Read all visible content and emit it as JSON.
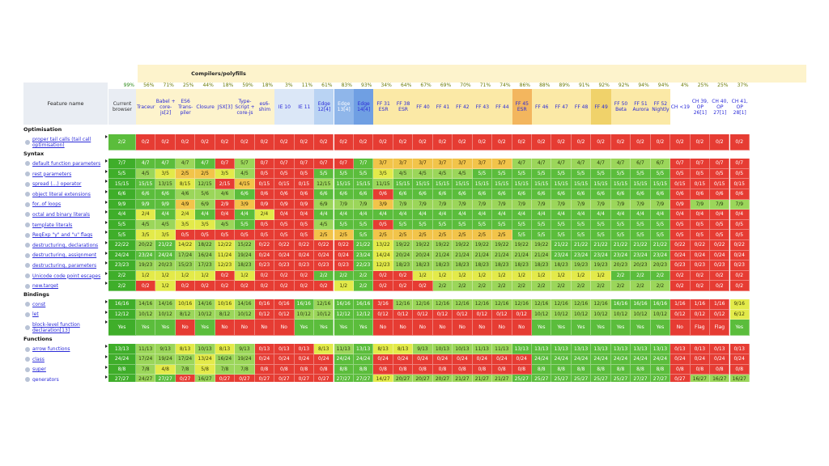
{
  "header": {
    "group_label": "Compilers/polyfills",
    "feature_name": "Feature name",
    "current_browser": [
      "Current",
      "browser"
    ]
  },
  "columns": [
    {
      "label": "Current browser",
      "pct": "99%"
    },
    {
      "label": "Traceur",
      "pct": "56%"
    },
    {
      "label": "Babel + core-js[2]",
      "pct": "71%"
    },
    {
      "label": "ES6 Trans-piler",
      "pct": "25%"
    },
    {
      "label": "Closure",
      "pct": "44%"
    },
    {
      "label": "JSX[3]",
      "pct": "18%"
    },
    {
      "label": "Type-Script + core-js",
      "pct": "59%"
    },
    {
      "label": "es6-shim",
      "pct": "18%"
    },
    {
      "label": "IE 10",
      "pct": "3%"
    },
    {
      "label": "IE 11",
      "pct": "11%"
    },
    {
      "label": "Edge 12[4]",
      "pct": "61%"
    },
    {
      "label": "Edge 13[4]",
      "pct": "83%"
    },
    {
      "label": "Edge 14[4]",
      "pct": "93%"
    },
    {
      "label": "FF 31 ESR",
      "pct": "34%"
    },
    {
      "label": "FF 38 ESR",
      "pct": "64%"
    },
    {
      "label": "FF 40",
      "pct": "67%"
    },
    {
      "label": "FF 41",
      "pct": "69%"
    },
    {
      "label": "FF 42",
      "pct": "70%"
    },
    {
      "label": "FF 43",
      "pct": "71%"
    },
    {
      "label": "FF 44",
      "pct": "74%"
    },
    {
      "label": "FF 45 ESR",
      "pct": "86%"
    },
    {
      "label": "FF 46",
      "pct": "88%"
    },
    {
      "label": "FF 47",
      "pct": "89%"
    },
    {
      "label": "FF 48",
      "pct": "91%"
    },
    {
      "label": "FF 49",
      "pct": "92%"
    },
    {
      "label": "FF 50 Beta",
      "pct": "92%"
    },
    {
      "label": "FF 51 Aurora",
      "pct": "94%"
    },
    {
      "label": "FF 52 Nightly",
      "pct": "94%"
    },
    {
      "label": "CH <19",
      "pct": "4%"
    },
    {
      "label": "CH 39, OP 26[1]",
      "pct": "25%"
    },
    {
      "label": "CH 40, OP 27[1]",
      "pct": "25%"
    },
    {
      "label": "CH 41, OP 28[1]",
      "pct": "37%"
    }
  ],
  "rows": [
    {
      "type": "section",
      "label": "Optimisation"
    },
    {
      "type": "feature",
      "label": "proper tail calls (tail call optimisation)",
      "cells": "2/2|0/2|0/2|0/2|0/2|0/2|0/2|0/2|0/2|0/2|0/2|0/2|0/2|0/2|0/2|0/2|0/2|0/2|0/2|0/2|0/2|0/2|0/2|0/2|0/2|0/2|0/2|0/2|0/2|0/2|0/2|0/2",
      "colors": "g|r|r|r|r|r|r|r|r|r|r|r|r|r|r|r|r|r|r|r|r|r|r|r|r|r|r|r|r|r|r|r"
    },
    {
      "type": "section",
      "label": "Syntax"
    },
    {
      "type": "feature",
      "label": "default function parameters",
      "cells": "7/7|4/7|4/7|4/7|4/7|0/7|5/7|0/7|0/7|0/7|0/7|0/7|7/7|3/7|3/7|3/7|3/7|3/7|3/7|3/7|4/7|4/7|4/7|4/7|4/7|4/7|6/7|6/7|0/7|0/7|0/7|0/7",
      "colors": "dg|g|g|lg|g|r|lg|r|r|r|r|r|g|o|o|o|o|o|o|o|lg|lg|lg|lg|lg|lg|lg|lg|r|r|r|r"
    },
    {
      "type": "feature",
      "label": "rest parameters",
      "cells": "5/5|4/5|3/5|2/5|2/5|3/5|4/5|0/5|0/5|0/5|5/5|5/5|5/5|3/5|4/5|4/5|4/5|4/5|5/5|5/5|5/5|5/5|5/5|5/5|5/5|5/5|5/5|5/5|0/5|0/5|0/5|0/5",
      "colors": "dg|lg|y|o|o|y|lg|r|r|r|g|g|g|y|lg|lg|lg|lg|g|g|g|g|g|g|g|g|g|g|r|r|r|r"
    },
    {
      "type": "feature",
      "label": "spread (...) operator",
      "cells": "15/15|15/15|13/15|8/15|12/15|2/15|4/15|0/15|0/15|0/15|12/15|15/15|15/15|11/15|15/15|15/15|15/15|15/15|15/15|15/15|15/15|15/15|15/15|15/15|15/15|15/15|15/15|15/15|0/15|0/15|0/15|0/15",
      "colors": "dg|g|lg|y|lg|r|o|r|r|r|lg|g|g|lg|g|g|g|g|g|g|g|g|g|g|g|g|g|g|r|r|r|r"
    },
    {
      "type": "feature",
      "label": "object literal extensions",
      "cells": "6/6|6/6|6/6|4/6|5/6|4/6|6/6|0/6|0/6|0/6|6/6|6/6|6/6|0/6|6/6|6/6|6/6|6/6|6/6|6/6|6/6|6/6|6/6|6/6|6/6|6/6|6/6|6/6|0/6|0/6|0/6|0/6",
      "colors": "dg|g|g|lg|lg|lg|g|r|r|r|g|g|g|r|g|g|g|g|g|g|g|g|g|g|g|g|g|g|r|r|r|r"
    },
    {
      "type": "feature",
      "label": "for..of loops",
      "cells": "9/9|9/9|9/9|4/9|6/9|2/9|3/9|0/9|0/9|0/9|6/9|7/9|7/9|3/9|7/9|7/9|7/9|7/9|7/9|7/9|7/9|7/9|7/9|7/9|7/9|7/9|7/9|7/9|0/9|7/9|7/9|7/9",
      "colors": "dg|g|g|o|lg|r|o|r|r|r|lg|lg|lg|o|lg|lg|lg|lg|lg|lg|lg|lg|lg|lg|lg|lg|lg|lg|r|lg|lg|lg"
    },
    {
      "type": "feature",
      "label": "octal and binary literals",
      "cells": "4/4|2/4|4/4|2/4|4/4|0/4|4/4|2/4|0/4|0/4|4/4|4/4|4/4|4/4|4/4|4/4|4/4|4/4|4/4|4/4|4/4|4/4|4/4|4/4|4/4|4/4|4/4|4/4|0/4|0/4|0/4|0/4",
      "colors": "dg|y|g|y|g|r|g|y|r|r|g|g|g|g|g|g|g|g|g|g|g|g|g|g|g|g|g|g|r|r|r|r"
    },
    {
      "type": "feature",
      "label": "template literals",
      "cells": "5/5|4/5|4/5|3/5|3/5|4/5|5/5|0/5|0/5|0/5|4/5|5/5|5/5|0/5|5/5|5/5|5/5|5/5|5/5|5/5|5/5|5/5|5/5|5/5|5/5|5/5|5/5|5/5|0/5|0/5|0/5|0/5",
      "colors": "dg|lg|lg|y|y|lg|g|r|r|r|lg|g|g|r|g|g|g|g|g|g|g|g|g|g|g|g|g|g|r|r|r|r"
    },
    {
      "type": "feature",
      "label": "RegExp \"y\" and \"u\" flags",
      "cells": "5/5|3/5|3/5|0/5|0/5|0/5|0/5|0/5|0/5|0/5|2/5|2/5|5/5|2/5|2/5|2/5|2/5|2/5|2/5|2/5|5/5|5/5|5/5|5/5|5/5|5/5|5/5|5/5|0/5|0/5|0/5|0/5",
      "colors": "dg|y|y|r|r|r|r|r|r|r|o|o|g|o|o|o|o|o|o|o|g|g|g|g|g|g|g|g|r|r|r|r"
    },
    {
      "type": "feature",
      "label": "destructuring, declarations",
      "cells": "22/22|20/22|21/22|14/22|18/22|12/22|15/22|0/22|0/22|0/22|0/22|0/22|21/22|13/22|19/22|19/22|19/22|19/22|19/22|19/22|19/22|19/22|21/22|21/22|21/22|21/22|21/22|21/22|0/22|0/22|0/22|0/22",
      "colors": "dg|lg|g|y|lg|y|lg|r|r|r|r|r|g|y|lg|lg|lg|lg|lg|lg|lg|lg|g|g|g|g|g|g|r|r|r|r"
    },
    {
      "type": "feature",
      "label": "destructuring, assignment",
      "cells": "24/24|23/24|24/24|17/24|16/24|11/24|19/24|0/24|0/24|0/24|0/24|0/24|23/24|14/24|20/24|20/24|21/24|21/24|21/24|21/24|21/24|21/24|23/24|23/24|23/24|23/24|23/24|23/24|0/24|0/24|0/24|0/24",
      "colors": "dg|g|g|lg|lg|y|lg|r|r|r|r|r|g|y|lg|lg|lg|lg|lg|lg|lg|lg|g|g|g|g|g|g|r|r|r|r"
    },
    {
      "type": "feature",
      "label": "destructuring, parameters",
      "cells": "23/23|19/23|20/23|15/23|17/23|12/23|18/23|0/23|0/23|0/23|0/23|0/23|22/23|12/23|18/23|18/23|18/23|18/23|18/23|18/23|18/23|18/23|18/23|19/23|19/23|20/23|20/23|20/23|0/23|0/23|0/23|0/23",
      "colors": "dg|lg|lg|lg|lg|y|lg|r|r|r|r|r|g|y|lg|lg|lg|lg|lg|lg|lg|lg|lg|lg|lg|lg|lg|lg|r|r|r|r"
    },
    {
      "type": "feature",
      "label": "Unicode code point escapes",
      "cells": "2/2|1/2|1/2|1/2|1/2|0/2|1/2|0/2|0/2|0/2|2/2|2/2|2/2|0/2|0/2|1/2|1/2|1/2|1/2|1/2|1/2|1/2|1/2|1/2|1/2|2/2|2/2|2/2|0/2|0/2|0/2|0/2",
      "colors": "dg|y|y|y|y|r|y|r|r|r|g|g|g|r|r|y|y|y|y|y|y|y|y|y|y|g|g|g|r|r|r|r"
    },
    {
      "type": "feature",
      "label": "new.target",
      "cells": "2/2|0/2|1/2|0/2|0/2|0/2|0/2|0/2|0/2|0/2|0/2|1/2|2/2|0/2|0/2|0/2|2/2|2/2|2/2|2/2|2/2|2/2|2/2|2/2|2/2|2/2|2/2|2/2|0/2|0/2|0/2|0/2",
      "colors": "dg|r|y|r|r|r|r|r|r|r|r|y|g|r|r|r|lg|lg|lg|lg|lg|lg|lg|lg|lg|lg|lg|lg|r|r|r|r"
    },
    {
      "type": "section",
      "label": "Bindings"
    },
    {
      "type": "feature",
      "label": "const",
      "cells": "16/16|14/16|14/16|10/16|14/16|10/16|14/16|0/16|0/16|16/16|12/16|16/16|16/16|3/16|12/16|12/16|12/16|12/16|12/16|12/16|12/16|12/16|12/16|12/16|12/16|16/16|16/16|16/16|1/16|1/16|1/16|9/16",
      "colors": "dg|lg|lg|y|lg|y|lg|r|r|g|lg|g|g|r|lg|lg|lg|lg|lg|lg|lg|lg|lg|lg|lg|g|g|g|r|r|r|y"
    },
    {
      "type": "feature",
      "label": "let",
      "cells": "12/12|10/12|10/12|8/12|10/12|8/12|10/12|0/12|0/12|10/12|10/12|12/12|12/12|0/12|0/12|0/12|0/12|0/12|0/12|0/12|0/12|10/12|10/12|10/12|10/12|10/12|10/12|10/12|0/12|0/12|0/12|6/12",
      "colors": "dg|lg|lg|lg|lg|lg|lg|r|r|lg|lg|g|g|r|r|r|r|r|r|r|r|lg|lg|lg|lg|lg|lg|lg|r|r|r|y"
    },
    {
      "type": "feature",
      "label": "block-level function declaration[13]",
      "cells": "Yes|Yes|Yes|No|Yes|No|No|No|No|Yes|Yes|Yes|Yes|No|No|No|No|No|No|No|No|Yes|Yes|Yes|Yes|Yes|Yes|Yes|No|Flag|Flag|Yes",
      "colors": "dg|g|g|r|g|r|r|r|r|g|g|g|g|r|r|r|r|r|r|r|r|g|g|g|g|g|g|g|r|r|r|g"
    },
    {
      "type": "section",
      "label": "Functions"
    },
    {
      "type": "feature",
      "label": "arrow functions",
      "cells": "13/13|11/13|9/13|8/13|10/13|8/13|9/13|0/13|0/13|0/13|8/13|11/13|13/13|8/13|8/13|9/13|10/13|10/13|11/13|11/13|13/13|13/13|13/13|13/13|13/13|13/13|13/13|13/13|0/13|0/13|0/13|0/13",
      "colors": "dg|lg|lg|y|lg|y|lg|r|r|r|y|lg|g|y|y|lg|lg|lg|lg|lg|g|g|g|g|g|g|g|g|r|r|r|r"
    },
    {
      "type": "feature",
      "label": "class",
      "cells": "24/24|17/24|19/24|17/24|13/24|16/24|19/24|0/24|0/24|0/24|0/24|24/24|24/24|0/24|0/24|0/24|0/24|0/24|0/24|0/24|0/24|24/24|24/24|24/24|24/24|24/24|24/24|24/24|0/24|0/24|0/24|0/24",
      "colors": "dg|lg|lg|lg|y|lg|lg|r|r|r|r|g|g|r|r|r|r|r|r|r|r|g|g|g|g|g|g|g|r|r|r|r"
    },
    {
      "type": "feature",
      "label": "super",
      "cells": "8/8|7/8|4/8|7/8|5/8|7/8|7/8|0/8|0/8|0/8|0/8|8/8|8/8|0/8|0/8|0/8|0/8|0/8|0/8|0/8|0/8|8/8|8/8|8/8|8/8|8/8|8/8|8/8|0/8|0/8|0/8|0/8",
      "colors": "dg|lg|y|lg|y|lg|lg|r|r|r|r|g|g|r|r|r|r|r|r|r|r|g|g|g|g|g|g|g|r|r|r|r"
    },
    {
      "type": "feature",
      "label": "generators",
      "cells": "27/27|24/27|27/27|0/27|16/27|0/27|0/27|0/27|0/27|0/27|0/27|27/27|27/27|14/27|20/27|20/27|20/27|21/27|21/27|21/27|25/27|25/27|25/27|25/27|25/27|25/27|27/27|27/27|0/27|16/27|16/27|16/27",
      "colors": "dg|lg|g|r|lg|r|r|r|r|r|r|g|g|y|lg|lg|lg|lg|lg|lg|g|g|g|g|g|g|g|g|r|lg|lg|lg"
    }
  ]
}
